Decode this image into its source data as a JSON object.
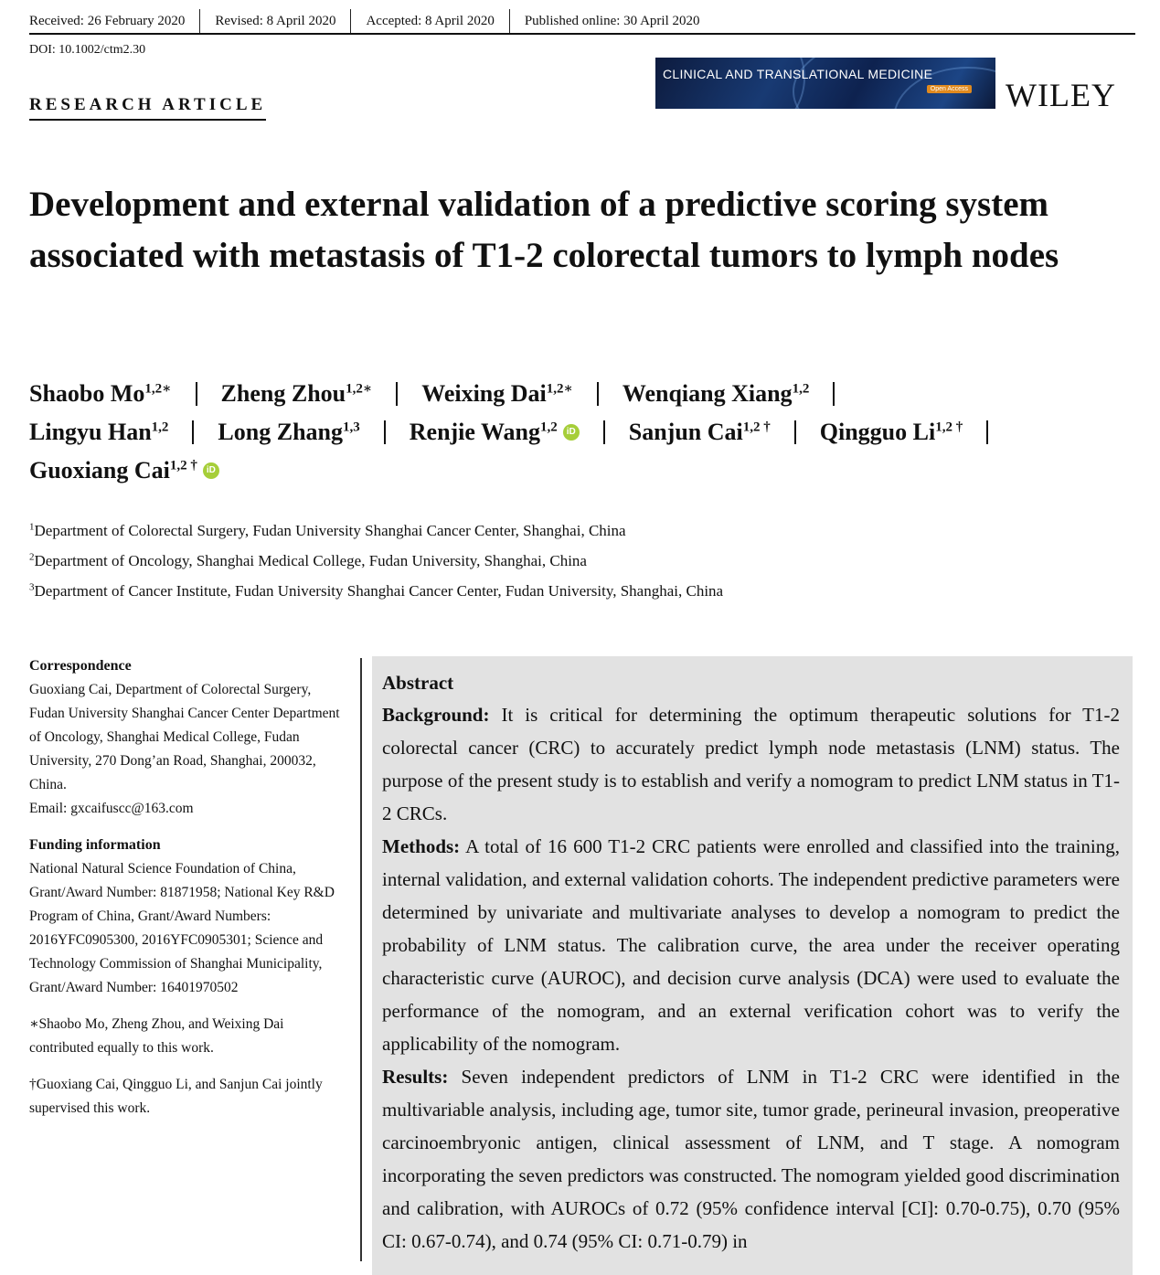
{
  "header": {
    "received": "Received: 26 February 2020",
    "revised": "Revised: 8 April 2020",
    "accepted": "Accepted: 8 April 2020",
    "published": "Published online: 30 April 2020",
    "doi": "DOI: 10.1002/ctm2.30",
    "article_type": "RESEARCH ARTICLE",
    "journal_banner": "CLINICAL AND TRANSLATIONAL MEDICINE",
    "open_access": "Open Access",
    "publisher": "WILEY"
  },
  "title": "Development and external validation of a predictive scoring system associated with metastasis of T1-2 colorectal tumors to lymph nodes",
  "authors": [
    {
      "name": "Shaobo Mo",
      "sup": "1,2∗"
    },
    {
      "name": "Zheng Zhou",
      "sup": "1,2∗"
    },
    {
      "name": "Weixing Dai",
      "sup": "1,2∗"
    },
    {
      "name": "Wenqiang Xiang",
      "sup": "1,2"
    },
    {
      "name": "Lingyu Han",
      "sup": "1,2"
    },
    {
      "name": "Long Zhang",
      "sup": "1,3"
    },
    {
      "name": "Renjie Wang",
      "sup": "1,2"
    },
    {
      "name": "Sanjun Cai",
      "sup": "1,2 †"
    },
    {
      "name": "Qingguo Li",
      "sup": "1,2 †"
    },
    {
      "name": "Guoxiang Cai",
      "sup": "1,2 †"
    }
  ],
  "affiliations": [
    {
      "sup": "1",
      "text": "Department of Colorectal Surgery, Fudan University Shanghai Cancer Center, Shanghai, China"
    },
    {
      "sup": "2",
      "text": "Department of Oncology, Shanghai Medical College, Fudan University, Shanghai, China"
    },
    {
      "sup": "3",
      "text": "Department of Cancer Institute, Fudan University Shanghai Cancer Center, Fudan University, Shanghai, China"
    }
  ],
  "sidebar": {
    "correspondence_heading": "Correspondence",
    "correspondence_text": "Guoxiang Cai, Department of Colorectal Surgery, Fudan University Shanghai Cancer Center Department of Oncology, Shanghai Medical College, Fudan University, 270 Dong’an Road, Shanghai, 200032, China.",
    "email": "Email: gxcaifuscc@163.com",
    "funding_heading": "Funding information",
    "funding_text": "National Natural Science Foundation of China, Grant/Award Number: 81871958; National Key R&D Program of China, Grant/Award Numbers: 2016YFC0905300, 2016YFC0905301; Science and Technology Commission of Shanghai Municipality, Grant/Award Number: 16401970502",
    "equal_note": "∗Shaobo Mo, Zheng Zhou, and Weixing Dai contributed equally to this work.",
    "supervised_note": "†Guoxiang Cai, Qingguo Li, and Sanjun Cai jointly supervised this work."
  },
  "abstract": {
    "heading": "Abstract",
    "background_label": "Background:",
    "background_text": " It is critical for determining the optimum therapeutic solutions for T1-2 colorectal cancer (CRC) to accurately predict lymph node metastasis (LNM) status. The purpose of the present study is to establish and verify a nomogram to predict LNM status in T1-2 CRCs.",
    "methods_label": "Methods:",
    "methods_text": " A total of 16 600 T1-2 CRC patients were enrolled and classified into the training, internal validation, and external validation cohorts. The independent predictive parameters were determined by univariate and multivariate analyses to develop a nomogram to predict the probability of LNM status. The calibration curve, the area under the receiver operating characteristic curve (AUROC), and decision curve analysis (DCA) were used to evaluate the performance of the nomogram, and an external verification cohort was to verify the applicability of the nomogram.",
    "results_label": "Results:",
    "results_text": " Seven independent predictors of LNM in T1-2 CRC were identified in the multivariable analysis, including age, tumor site, tumor grade, perineural invasion, preoperative carcinoembryonic antigen, clinical assessment of LNM, and T stage. A nomogram incorporating the seven predictors was constructed. The nomogram yielded good discrimination and calibration, with AUROCs of 0.72 (95% confidence interval [CI]: 0.70-0.75), 0.70 (95% CI: 0.67-0.74), and 0.74 (95% CI: 0.71-0.79) in"
  }
}
